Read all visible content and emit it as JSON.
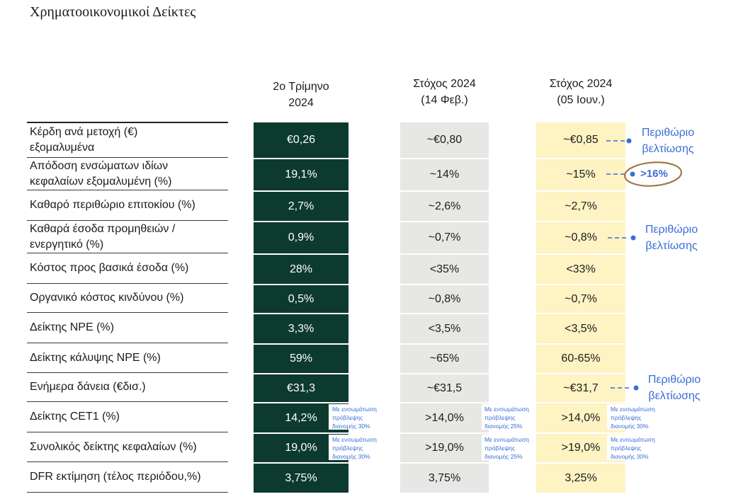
{
  "title": "Χρηματοοικονομικοί Δείκτες",
  "table": {
    "headers": [
      "2ο Τρίμηνο\n2024",
      "Στόχος 2024\n(14 Φεβ.)",
      "Στόχος 2024\n(05 Ιουν.)"
    ],
    "rows": [
      {
        "label": "Κέρδη ανά μετοχή (€)\nεξομαλυμένα",
        "values": [
          "€0,26",
          "~€0,80",
          "~€0,85"
        ],
        "annotation": {
          "text": "Περιθώριο\nβελτίωσης"
        }
      },
      {
        "label": "Απόδοση ενσώματων ιδίων\nκεφαλαίων εξομαλυμένη (%)",
        "values": [
          "19,1%",
          "~14%",
          "~15%"
        ],
        "annotation": {
          "text": ">16%",
          "circled": true
        }
      },
      {
        "label": "Καθαρό περιθώριο επιτοκίου (%)",
        "values": [
          "2,7%",
          "~2,6%",
          "~2,7%"
        ]
      },
      {
        "label": "Καθαρά έσοδα προμηθειών /\nενεργητικό (%)",
        "values": [
          "0,9%",
          "~0,7%",
          "~0,8%"
        ],
        "annotation": {
          "text": "Περιθώριο\nβελτίωσης"
        }
      },
      {
        "label": "Κόστος προς βασικά έσοδα (%)",
        "values": [
          "28%",
          "<35%",
          "<33%"
        ]
      },
      {
        "label": "Οργανικό κόστος κινδύνου (%)",
        "values": [
          "0,5%",
          "~0,8%",
          "~0,7%"
        ]
      },
      {
        "label": "Δείκτης NPE (%)",
        "values": [
          "3,3%",
          "<3,5%",
          "<3,5%"
        ]
      },
      {
        "label": "Δείκτης κάλυψης NPE (%)",
        "values": [
          "59%",
          "~65%",
          "60-65%"
        ]
      },
      {
        "label": "Ενήμερα δάνεια (€δισ.)",
        "values": [
          "€31,3",
          "~€31,5",
          "~€31,7"
        ],
        "annotation": {
          "text": "Περιθώριο\nβελτίωσης"
        }
      },
      {
        "label": "Δείκτης CET1 (%)",
        "values": [
          "14,2%",
          ">14,0%",
          ">14,0%"
        ],
        "notes": [
          "Με ενσωμάτωση\nπρόβλεψης\nδιανομής 30%",
          "Με ενσωμάτωση\nπρόβλεψης\nδιανομής 25%",
          "Με ενσωμάτωση\nπρόβλεψης\nδιανομής 30%"
        ]
      },
      {
        "label": "Συνολικός δείκτης κεφαλαίων (%)",
        "values": [
          "19,0%",
          ">19,0%",
          ">19,0%"
        ],
        "notes": [
          "Με ενσωμάτωση\nπρόβλεψης\nδιανομής 30%",
          "Με ενσωμάτωση\nπρόβλεψης\nδιανομής 25%",
          "Με ενσωμάτωση\nπρόβλεψης\nδιανομής 30%"
        ]
      },
      {
        "label": "DFR εκτίμηση (τέλος περιόδου,%)",
        "values": [
          "3,75%",
          "3,75%",
          "3,25%"
        ]
      }
    ]
  },
  "colors": {
    "q2_column": "#0d3a2e",
    "target_feb_column": "#e7e7e5",
    "target_jun_column": "#fdf3c3",
    "annotation_blue": "#3a6ed6",
    "highlight_circle": "#a07846"
  }
}
